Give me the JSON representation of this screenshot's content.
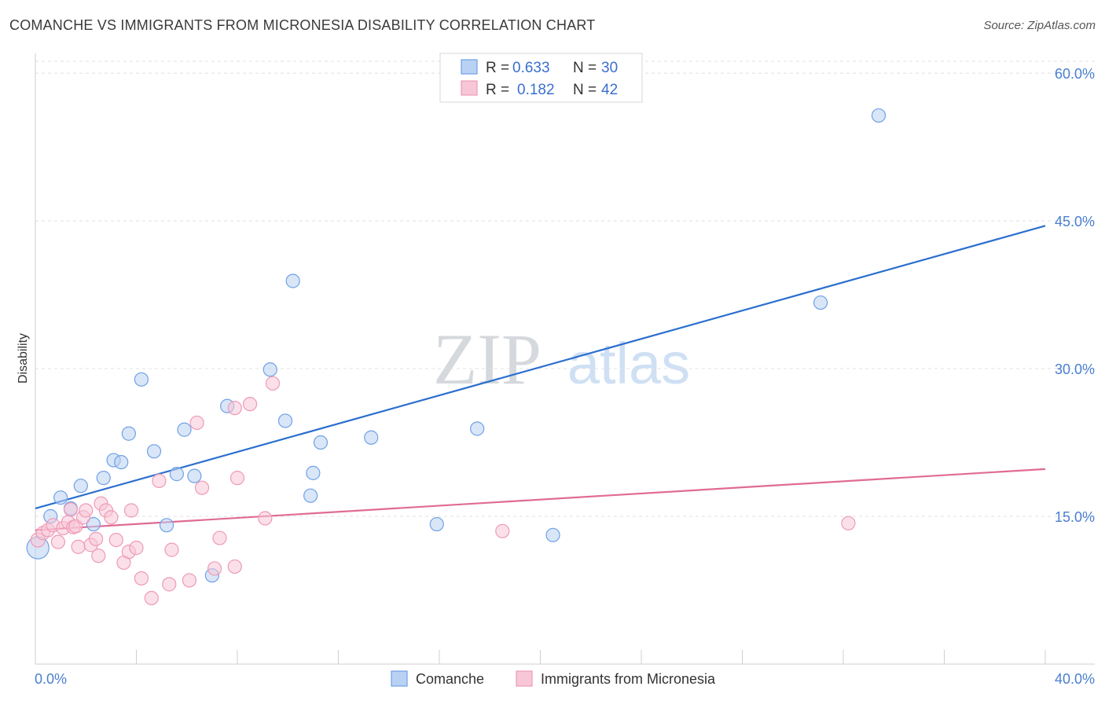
{
  "chart_data": {
    "type": "scatter",
    "title": "COMANCHE VS IMMIGRANTS FROM MICRONESIA DISABILITY CORRELATION CHART",
    "source": "Source: ZipAtlas.com",
    "ylabel": "Disability",
    "xlim": [
      0,
      40
    ],
    "ylim": [
      0,
      62
    ],
    "x_tick_labels": [
      "0.0%",
      "40.0%"
    ],
    "y_ticks": [
      15,
      30,
      45,
      60
    ],
    "y_tick_labels": [
      "15.0%",
      "30.0%",
      "45.0%",
      "60.0%"
    ],
    "watermark": {
      "zip": "ZIP",
      "atlas": "atlas"
    },
    "legend_stats": [
      {
        "r_label": "R =",
        "r_value": "0.633",
        "n_label": "N =",
        "n_value": "30"
      },
      {
        "r_label": "R =",
        "r_value": "0.182",
        "n_label": "N =",
        "n_value": "42"
      }
    ],
    "series": [
      {
        "name": "Comanche",
        "color": "#6fa1e6",
        "fill": "#b9d2f3",
        "line_color": "#2b6fce",
        "trend": [
          [
            0,
            15.8
          ],
          [
            40,
            44.5
          ]
        ],
        "points": [
          [
            0.1,
            11.8
          ],
          [
            0.6,
            15.0
          ],
          [
            1.0,
            16.9
          ],
          [
            1.4,
            15.8
          ],
          [
            1.8,
            18.1
          ],
          [
            2.3,
            14.2
          ],
          [
            2.7,
            18.9
          ],
          [
            3.1,
            20.7
          ],
          [
            3.4,
            20.5
          ],
          [
            3.7,
            23.4
          ],
          [
            4.2,
            28.9
          ],
          [
            4.7,
            21.6
          ],
          [
            5.2,
            14.1
          ],
          [
            5.6,
            19.3
          ],
          [
            5.9,
            23.8
          ],
          [
            6.3,
            19.1
          ],
          [
            7.0,
            9.0
          ],
          [
            7.6,
            26.2
          ],
          [
            9.3,
            29.9
          ],
          [
            10.2,
            38.9
          ],
          [
            9.9,
            24.7
          ],
          [
            10.9,
            17.1
          ],
          [
            11.3,
            22.5
          ],
          [
            11.0,
            19.4
          ],
          [
            13.3,
            23.0
          ],
          [
            15.9,
            14.2
          ],
          [
            17.5,
            23.9
          ],
          [
            20.5,
            13.1
          ],
          [
            31.1,
            36.7
          ],
          [
            33.4,
            55.7
          ]
        ]
      },
      {
        "name": "Immigrants from Micronesia",
        "color": "#ee9ab7",
        "fill": "#f7c7d7",
        "line_color": "#e06b94",
        "trend": [
          [
            0,
            13.6
          ],
          [
            40,
            19.8
          ]
        ],
        "points": [
          [
            0.1,
            12.6
          ],
          [
            0.3,
            13.3
          ],
          [
            0.5,
            13.6
          ],
          [
            0.7,
            14.1
          ],
          [
            0.9,
            12.4
          ],
          [
            1.1,
            13.8
          ],
          [
            1.3,
            14.4
          ],
          [
            1.5,
            13.9
          ],
          [
            1.6,
            14.0
          ],
          [
            1.7,
            11.9
          ],
          [
            1.9,
            14.9
          ],
          [
            2.0,
            15.6
          ],
          [
            2.2,
            12.1
          ],
          [
            2.4,
            12.7
          ],
          [
            2.5,
            11.0
          ],
          [
            2.6,
            16.3
          ],
          [
            2.8,
            15.6
          ],
          [
            3.0,
            14.9
          ],
          [
            3.2,
            12.6
          ],
          [
            3.5,
            10.3
          ],
          [
            3.7,
            11.4
          ],
          [
            3.8,
            15.6
          ],
          [
            4.0,
            11.8
          ],
          [
            4.2,
            8.7
          ],
          [
            4.6,
            6.7
          ],
          [
            4.9,
            18.6
          ],
          [
            5.3,
            8.1
          ],
          [
            5.4,
            11.6
          ],
          [
            6.1,
            8.5
          ],
          [
            6.4,
            24.5
          ],
          [
            6.6,
            17.9
          ],
          [
            7.1,
            9.7
          ],
          [
            7.3,
            12.8
          ],
          [
            7.9,
            26.0
          ],
          [
            8.0,
            18.9
          ],
          [
            8.5,
            26.4
          ],
          [
            7.9,
            9.9
          ],
          [
            9.1,
            14.8
          ],
          [
            9.4,
            28.5
          ],
          [
            18.5,
            13.5
          ],
          [
            32.2,
            14.3
          ],
          [
            1.4,
            15.7
          ]
        ]
      }
    ]
  }
}
